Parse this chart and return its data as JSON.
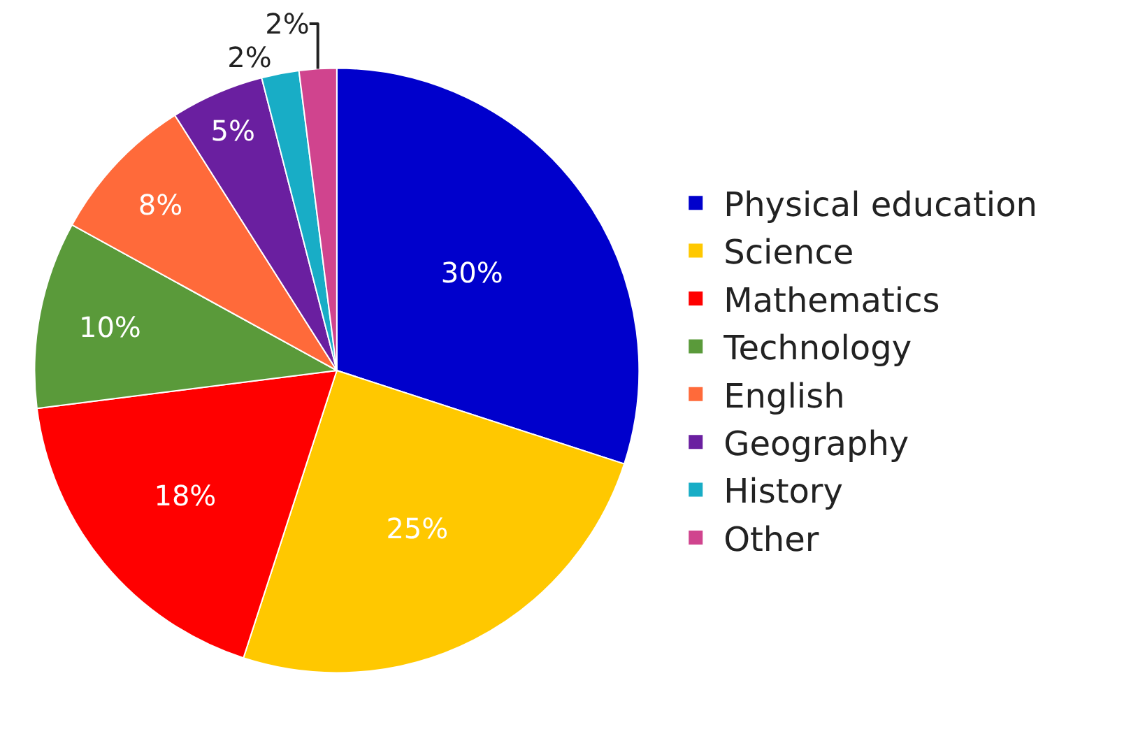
{
  "chart_data": {
    "type": "pie",
    "categories": [
      "Physical education",
      "Science",
      "Mathematics",
      "Technology",
      "English",
      "Geography",
      "History",
      "Other"
    ],
    "values": [
      30,
      25,
      18,
      10,
      8,
      5,
      2,
      2
    ],
    "value_labels": [
      "30%",
      "25%",
      "18%",
      "10%",
      "8%",
      "5%",
      "2%",
      "2%"
    ],
    "colors": [
      "#0000cc",
      "#ffc800",
      "#ff0000",
      "#5a9a3a",
      "#ff6a3a",
      "#6a1fa0",
      "#18adc6",
      "#d0448e"
    ],
    "legend": "right"
  }
}
